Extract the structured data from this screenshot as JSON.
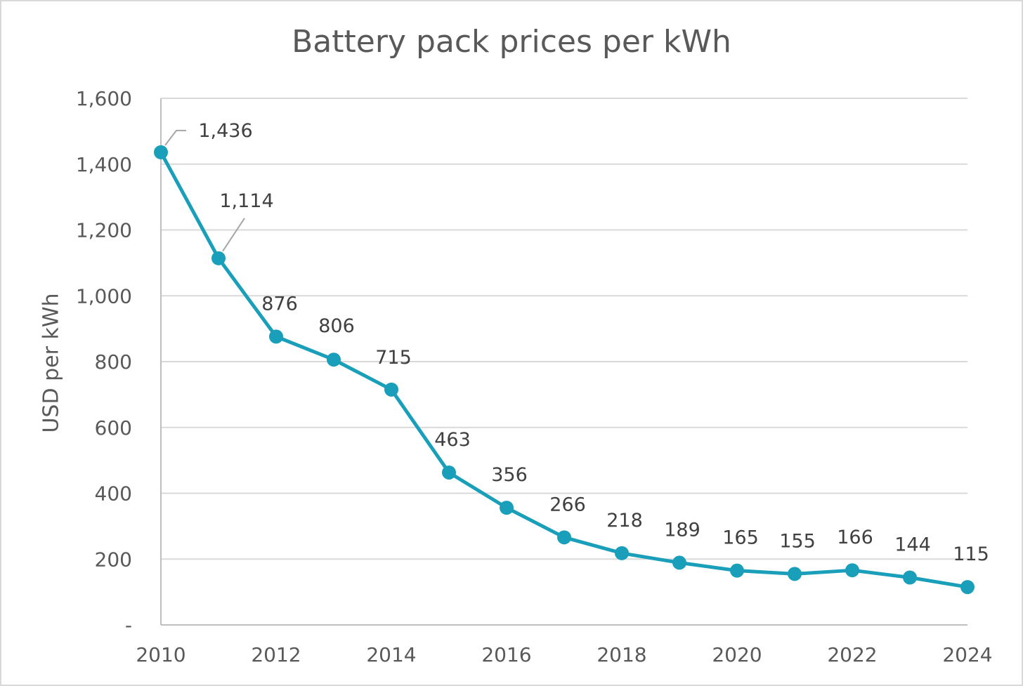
{
  "chart_data": {
    "type": "line",
    "title": "Battery pack prices per kWh",
    "xlabel": "",
    "ylabel": "USD per kWh",
    "x": [
      2010,
      2011,
      2012,
      2013,
      2014,
      2015,
      2016,
      2017,
      2018,
      2019,
      2020,
      2021,
      2022,
      2023,
      2024
    ],
    "x_tick_labels": [
      "2010",
      "2012",
      "2014",
      "2016",
      "2018",
      "2020",
      "2022",
      "2024"
    ],
    "y_tick_labels": [
      "-",
      "200",
      "400",
      "600",
      "800",
      "1,000",
      "1,200",
      "1,400",
      "1,600"
    ],
    "ylim": [
      0,
      1600
    ],
    "xlim": [
      2010,
      2024
    ],
    "grid": true,
    "legend": "none",
    "series": [
      {
        "values": [
          1436,
          1114,
          876,
          806,
          715,
          463,
          356,
          266,
          218,
          189,
          165,
          155,
          166,
          144,
          115
        ],
        "labels": [
          "1,436",
          "1,114",
          "876",
          "806",
          "715",
          "463",
          "356",
          "266",
          "218",
          "189",
          "165",
          "155",
          "166",
          "144",
          "115"
        ],
        "color": "#1a9fba"
      }
    ],
    "gridline_color": "#d9d9d9",
    "axis_color": "#bfbfbf",
    "leader_line_color": "#a6a6a6"
  }
}
